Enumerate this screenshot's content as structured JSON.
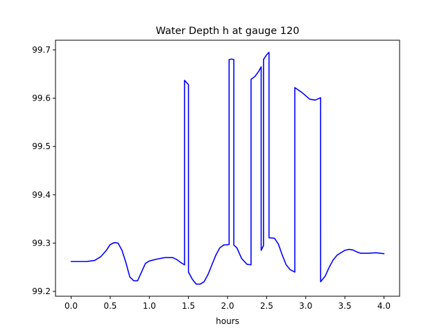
{
  "chart_data": {
    "type": "line",
    "title": "Water Depth h at gauge 120",
    "xlabel": "hours",
    "ylabel": "",
    "xlim": [
      -0.2,
      4.2
    ],
    "ylim": [
      99.19,
      99.72
    ],
    "xticks": [
      0.0,
      0.5,
      1.0,
      1.5,
      2.0,
      2.5,
      3.0,
      3.5,
      4.0
    ],
    "xtick_labels": [
      "0.0",
      "0.5",
      "1.0",
      "1.5",
      "2.0",
      "2.5",
      "3.0",
      "3.5",
      "4.0"
    ],
    "yticks": [
      99.2,
      99.3,
      99.4,
      99.5,
      99.6,
      99.7
    ],
    "ytick_labels": [
      "99.2",
      "99.3",
      "99.4",
      "99.5",
      "99.6",
      "99.7"
    ],
    "grid": false,
    "line_color": "#0000ff",
    "series": [
      {
        "x": [
          0.0,
          0.1,
          0.2,
          0.3,
          0.38,
          0.45,
          0.5,
          0.55,
          0.6,
          0.65,
          0.7,
          0.75,
          0.8,
          0.85,
          0.9,
          0.95,
          1.0,
          1.1,
          1.2,
          1.3,
          1.35,
          1.4,
          1.45,
          1.45,
          1.5,
          1.5,
          1.55,
          1.6,
          1.65,
          1.7,
          1.75,
          1.8,
          1.85,
          1.9,
          1.95,
          2.02,
          2.02,
          2.05,
          2.08,
          2.08,
          2.12,
          2.18,
          2.25,
          2.3,
          2.3,
          2.35,
          2.4,
          2.43,
          2.43,
          2.46,
          2.46,
          2.5,
          2.53,
          2.53,
          2.6,
          2.65,
          2.7,
          2.75,
          2.8,
          2.86,
          2.86,
          2.95,
          3.05,
          3.12,
          3.19,
          3.19,
          3.25,
          3.3,
          3.35,
          3.4,
          3.45,
          3.5,
          3.55,
          3.6,
          3.65,
          3.7,
          3.8,
          3.9,
          4.0
        ],
        "y": [
          99.262,
          99.262,
          99.262,
          99.264,
          99.272,
          99.285,
          99.297,
          99.301,
          99.3,
          99.285,
          99.26,
          99.23,
          99.222,
          99.222,
          99.24,
          99.258,
          99.263,
          99.267,
          99.27,
          99.27,
          99.266,
          99.26,
          99.255,
          99.637,
          99.628,
          99.24,
          99.225,
          99.215,
          99.215,
          99.22,
          99.235,
          99.255,
          99.275,
          99.29,
          99.296,
          99.297,
          99.68,
          99.681,
          99.68,
          99.296,
          99.29,
          99.268,
          99.256,
          99.255,
          99.639,
          99.645,
          99.656,
          99.665,
          99.285,
          99.295,
          99.68,
          99.69,
          99.695,
          99.311,
          99.31,
          99.298,
          99.275,
          99.255,
          99.245,
          99.24,
          99.622,
          99.612,
          99.598,
          99.596,
          99.601,
          99.22,
          99.232,
          99.25,
          99.265,
          99.275,
          99.28,
          99.285,
          99.287,
          99.286,
          99.282,
          99.279,
          99.279,
          99.28,
          99.278
        ]
      }
    ]
  }
}
